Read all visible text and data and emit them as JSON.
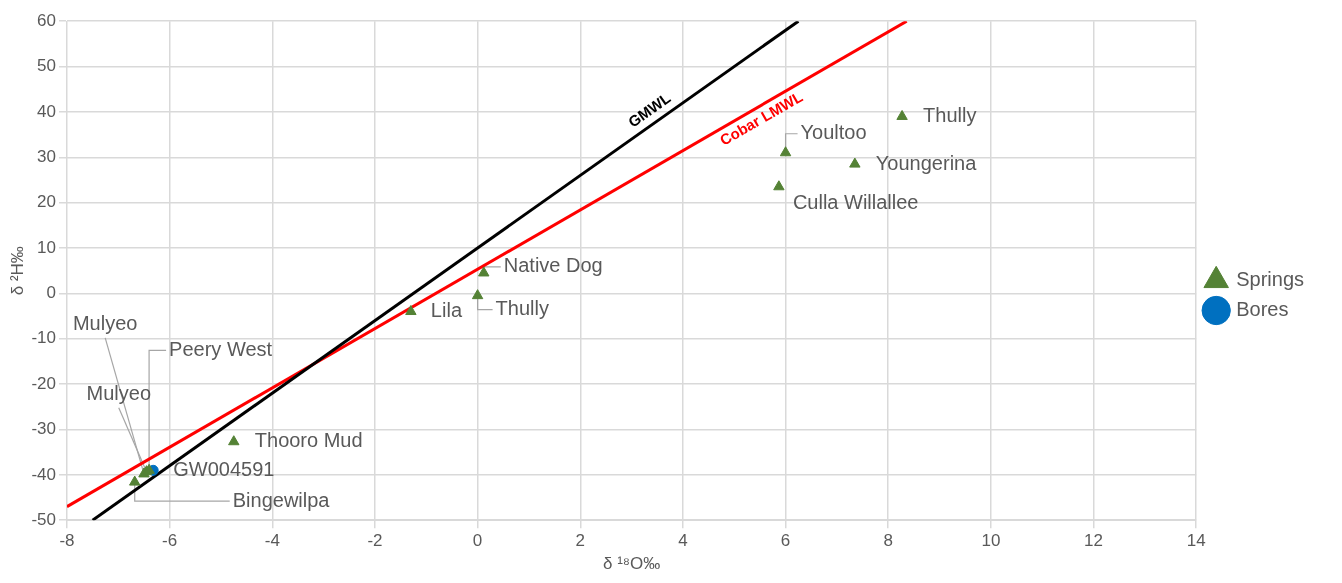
{
  "chart_data": {
    "type": "scatter",
    "xlabel": "δ ¹⁸O‰",
    "ylabel": "δ ²H‰",
    "xlim": [
      -8,
      14
    ],
    "xticks": [
      -8,
      -6,
      -4,
      -2,
      0,
      2,
      4,
      6,
      8,
      10,
      12,
      14
    ],
    "ylim": [
      -50,
      60
    ],
    "yticks": [
      -50,
      -40,
      -30,
      -20,
      -10,
      0,
      10,
      20,
      30,
      40,
      50,
      60
    ],
    "grid": true,
    "legend": "right",
    "series": [
      {
        "name": "GMWL",
        "type": "line",
        "color": "#000000",
        "marker": "none",
        "line_style": "solid",
        "x": [
          -7.5,
          6.25
        ],
        "values": [
          -50,
          60
        ]
      },
      {
        "name": "Cobar LMWL",
        "type": "line",
        "color": "#ff0000",
        "marker": "none",
        "line_style": "solid",
        "x": [
          -8,
          8.36
        ],
        "values": [
          -47,
          60
        ]
      },
      {
        "name": "Springs",
        "color": "#548235",
        "marker": "triangle",
        "x": [
          8.27,
          6.0,
          7.35,
          5.87,
          0.12,
          0,
          -1.3,
          -4.75,
          -6.5,
          -6.45,
          -6.4,
          -6.68
        ],
        "values": [
          39,
          31,
          28.5,
          23.5,
          4.5,
          -0.5,
          -4,
          -32.7,
          -39.8,
          -39.3,
          -39,
          -41.6
        ]
      },
      {
        "name": "Bores",
        "color": "#0070c0",
        "marker": "circle",
        "x": [
          -6.32
        ],
        "values": [
          -39
        ]
      }
    ],
    "annotations": [
      {
        "text": "Thully",
        "x": 8.27,
        "y": 39
      },
      {
        "text": "Youltoo",
        "x": 6.0,
        "y": 31
      },
      {
        "text": "Youngerina",
        "x": 7.35,
        "y": 28.5
      },
      {
        "text": "Culla Willallee",
        "x": 5.87,
        "y": 23.5
      },
      {
        "text": "Native Dog",
        "x": 0.12,
        "y": 4.5
      },
      {
        "text": "Thully",
        "x": 0,
        "y": -0.5
      },
      {
        "text": "Lila",
        "x": -1.3,
        "y": -4
      },
      {
        "text": "Thooro Mud",
        "x": -4.75,
        "y": -32.7
      },
      {
        "text": "Mulyeo",
        "x": -6.5,
        "y": -39.8
      },
      {
        "text": "Mulyeo",
        "x": -6.45,
        "y": -39.3
      },
      {
        "text": "Peery West",
        "x": -6.4,
        "y": -39
      },
      {
        "text": "Bingewilpa",
        "x": -6.68,
        "y": -41.6
      },
      {
        "text": "GW004591",
        "x": -6.32,
        "y": -39
      }
    ]
  }
}
